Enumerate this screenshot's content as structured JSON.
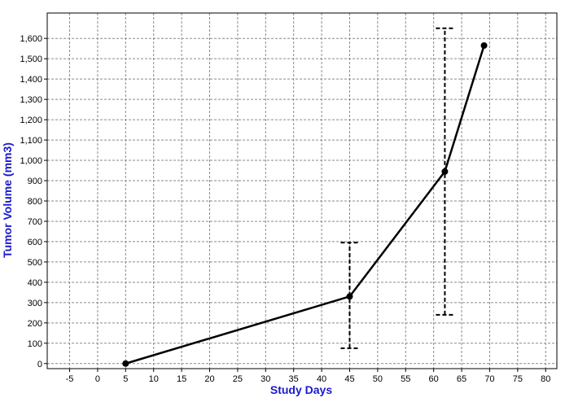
{
  "chart_data": {
    "type": "line",
    "title": "",
    "xlabel": "Study Days",
    "ylabel": "Tumor Volume (mm3)",
    "xlim": [
      -9,
      82
    ],
    "ylim": [
      -25,
      1725
    ],
    "x_ticks": [
      -5,
      0,
      5,
      10,
      15,
      20,
      25,
      30,
      35,
      40,
      45,
      50,
      55,
      60,
      65,
      70,
      75,
      80
    ],
    "x_tick_labels": [
      "-5",
      "0",
      "5",
      "10",
      "15",
      "20",
      "25",
      "30",
      "35",
      "40",
      "45",
      "50",
      "55",
      "60",
      "65",
      "70",
      "75",
      "80"
    ],
    "y_ticks": [
      0,
      100,
      200,
      300,
      400,
      500,
      600,
      700,
      800,
      900,
      1000,
      1100,
      1200,
      1300,
      1400,
      1500,
      1600
    ],
    "y_tick_labels": [
      "0",
      "100",
      "200",
      "300",
      "400",
      "500",
      "600",
      "700",
      "800",
      "900",
      "1,000",
      "1,100",
      "1,200",
      "1,300",
      "1,400",
      "1,500",
      "1,600"
    ],
    "grid": true,
    "series": [
      {
        "x": [
          5,
          45,
          62,
          69
        ],
        "y": [
          0,
          330,
          945,
          1565
        ],
        "error_low": [
          null,
          75,
          240,
          null
        ],
        "error_high": [
          null,
          595,
          1650,
          null
        ],
        "color": "#000000"
      }
    ],
    "axis_title_color": "#1a1acc"
  }
}
